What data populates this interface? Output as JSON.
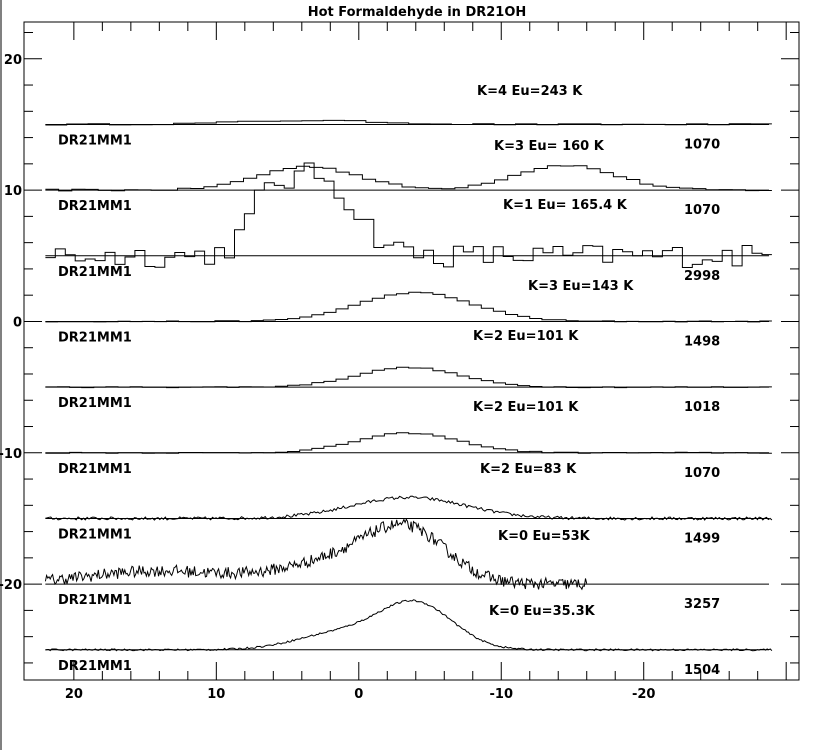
{
  "chart_data": {
    "type": "line",
    "title": "Hot Formaldehyde in DR21OH",
    "xlabel": "",
    "ylabel": "",
    "xlim": [
      23.5,
      -30.9
    ],
    "ylim": [
      -27.3,
      22.8
    ],
    "x_ticks": [
      20,
      10,
      0,
      -10,
      -20
    ],
    "y_ticks": [
      20,
      10,
      0,
      -10,
      -20
    ],
    "x_tick_labels": [
      "20",
      "10",
      "0",
      "-10",
      "-20"
    ],
    "y_tick_labels": [
      "20",
      "10",
      "0",
      "-10",
      "-20"
    ],
    "grid": false,
    "series": [
      {
        "name": "K=4 Eu=243 K",
        "source": "DR21MM1",
        "number": "1070",
        "offset": 15,
        "style": "histogram",
        "x0": 22,
        "x1": -29,
        "bins": 34,
        "peaks": [
          {
            "center": 3.5,
            "height": 0.3,
            "width": 5
          }
        ],
        "noise": 0.05
      },
      {
        "name": "K=3 Eu= 160 K",
        "source": "DR21MM1",
        "number": "1070",
        "offset": 10,
        "style": "histogram",
        "x0": 22,
        "x1": -29,
        "bins": 55,
        "peaks": [
          {
            "center": 3.5,
            "height": 1.8,
            "width": 3.5
          },
          {
            "center": -14.5,
            "height": 1.9,
            "width": 3.5
          }
        ],
        "noise": 0.07
      },
      {
        "name": "K=1 Eu= 165.4 K",
        "source": "DR21MM1",
        "number": "2998",
        "offset": 5,
        "style": "histogram",
        "x0": 22,
        "x1": -29,
        "bins": 73,
        "peaks": [
          {
            "center": 3.0,
            "height": 6.2,
            "width": 2.6
          },
          {
            "center": 6.5,
            "height": 2.5,
            "width": 1.2
          }
        ],
        "noise": 0.9
      },
      {
        "name": "K=3 Eu=143 K",
        "source": "DR21MM1",
        "number": "1498",
        "offset": 0,
        "style": "histogram",
        "x0": 22,
        "x1": -29,
        "bins": 60,
        "peaks": [
          {
            "center": -4.0,
            "height": 2.2,
            "width": 4.0
          }
        ],
        "noise": 0.04
      },
      {
        "name": "K=2 Eu=101 K",
        "source": "DR21MM1",
        "number": "1018",
        "offset": -5,
        "style": "histogram",
        "x0": 22,
        "x1": -29,
        "bins": 60,
        "peaks": [
          {
            "center": -3.5,
            "height": 1.5,
            "width": 3.6
          }
        ],
        "noise": 0.04
      },
      {
        "name": "K=2 Eu=101 K",
        "source": "DR21MM1",
        "number": "1070",
        "offset": -10,
        "style": "histogram",
        "x0": 22,
        "x1": -29,
        "bins": 60,
        "peaks": [
          {
            "center": -3.5,
            "height": 1.5,
            "width": 3.6
          }
        ],
        "noise": 0.04
      },
      {
        "name": "K=2 Eu=83 K",
        "source": "DR21MM1",
        "number": "1499",
        "offset": -15,
        "style": "line",
        "x0": 22,
        "x1": -29,
        "points": 400,
        "peaks": [
          {
            "center": -3.5,
            "height": 1.6,
            "width": 4.0
          }
        ],
        "noise": 0.12
      },
      {
        "name": "K=0 Eu=53K",
        "source": "DR21MM1",
        "number": "3257",
        "offset": -20,
        "style": "line",
        "x0": 22,
        "x1": -16,
        "points": 450,
        "peaks": [
          {
            "center": -3.5,
            "height": 3.5,
            "width": 2.8
          },
          {
            "center": 1.0,
            "height": 1.8,
            "width": 4.0
          },
          {
            "center": 14.0,
            "height": 1.0,
            "width": 5.0
          }
        ],
        "noise": 0.45
      },
      {
        "name": "K=0 Eu=35.3K",
        "source": "DR21MM1",
        "number": "1504",
        "offset": -25,
        "style": "line",
        "x0": 22,
        "x1": -29,
        "points": 450,
        "peaks": [
          {
            "center": -4.0,
            "height": 3.5,
            "width": 2.6
          },
          {
            "center": 1.5,
            "height": 1.2,
            "width": 3.0
          }
        ],
        "noise": 0.07
      }
    ]
  }
}
